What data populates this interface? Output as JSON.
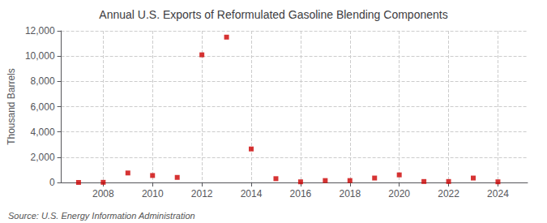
{
  "chart_data": {
    "type": "scatter",
    "title": "Annual U.S. Exports of Reformulated Gasoline Blending Components",
    "ylabel": "Thousand Barrels",
    "annotations": [
      "Source: U.S. Energy Information Administration"
    ],
    "x": [
      2007,
      2008,
      2009,
      2010,
      2011,
      2012,
      2013,
      2014,
      2015,
      2016,
      2017,
      2018,
      2019,
      2020,
      2021,
      2022,
      2023,
      2024
    ],
    "values": [
      2,
      10,
      750,
      550,
      400,
      10100,
      11500,
      2650,
      300,
      50,
      150,
      150,
      350,
      600,
      75,
      75,
      350,
      50
    ],
    "color": "#cc0000",
    "marker": "square",
    "xlim": [
      2006.3,
      2025.2
    ],
    "xticks": [
      2008,
      2010,
      2012,
      2014,
      2016,
      2018,
      2020,
      2022,
      2024
    ],
    "ylim": [
      0,
      12000
    ],
    "yticks": [
      0,
      {
        "value": 2000,
        "label": "2,000"
      },
      {
        "value": 4000,
        "label": "4,000"
      },
      {
        "value": 6000,
        "label": "6,000"
      },
      {
        "value": 8000,
        "label": "8,000"
      },
      {
        "value": 10000,
        "label": "10,000"
      },
      {
        "value": 12000,
        "label": "12,000"
      }
    ],
    "grid": true
  }
}
